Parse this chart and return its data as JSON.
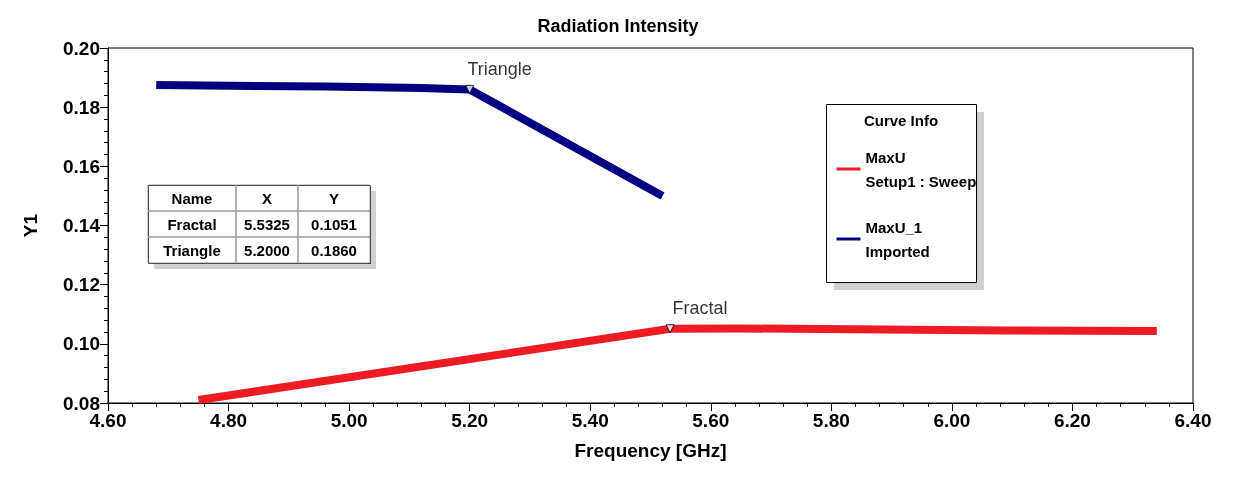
{
  "chart_data": {
    "type": "line",
    "title": "Radiation Intensity",
    "xlabel": "Frequency [GHz]",
    "ylabel": "Y1",
    "legend_title": "Curve Info",
    "legend": "top right",
    "grid": false,
    "marker": "none",
    "xlim": [
      4.6,
      6.4
    ],
    "xticks": [
      {
        "value": 4.6,
        "label": "4.60"
      },
      {
        "value": 4.8,
        "label": "4.80"
      },
      {
        "value": 5.0,
        "label": "5.00"
      },
      {
        "value": 5.2,
        "label": "5.20"
      },
      {
        "value": 5.4,
        "label": "5.40"
      },
      {
        "value": 5.6,
        "label": "5.60"
      },
      {
        "value": 5.8,
        "label": "5.80"
      },
      {
        "value": 6.0,
        "label": "6.00"
      },
      {
        "value": 6.2,
        "label": "6.20"
      },
      {
        "value": 6.4,
        "label": "6.40"
      }
    ],
    "ylim": [
      0.08,
      0.2
    ],
    "yticks": [
      {
        "value": 0.08,
        "label": "0.08"
      },
      {
        "value": 0.1,
        "label": "0.10"
      },
      {
        "value": 0.12,
        "label": "0.12"
      },
      {
        "value": 0.14,
        "label": "0.14"
      },
      {
        "value": 0.16,
        "label": "0.16"
      },
      {
        "value": 0.18,
        "label": "0.18"
      },
      {
        "value": 0.2,
        "label": "0.20"
      }
    ],
    "series": [
      {
        "name": "MaxU\nSetup1 : Sweep",
        "color": "#ed1c24",
        "x": [
          4.75,
          5.5325,
          5.65,
          6.09,
          6.34
        ],
        "values": [
          0.081,
          0.1051,
          0.1052,
          0.1045,
          0.1043
        ]
      },
      {
        "name": "MaxU_1\nImported",
        "color": "#000080",
        "x": [
          4.68,
          4.8,
          4.96,
          5.12,
          5.2,
          5.52
        ],
        "values": [
          0.1875,
          0.1872,
          0.187,
          0.1865,
          0.186,
          0.15
        ]
      }
    ],
    "annotations": [
      {
        "text": "Triangle",
        "x": 5.2,
        "y": 0.186
      },
      {
        "text": "Fractal",
        "x": 5.5325,
        "y": 0.1051
      },
      "Name",
      "X",
      "Y",
      "Fractal",
      "5.5325",
      "0.1051",
      "Triangle",
      "5.2000",
      "0.1860"
    ]
  }
}
